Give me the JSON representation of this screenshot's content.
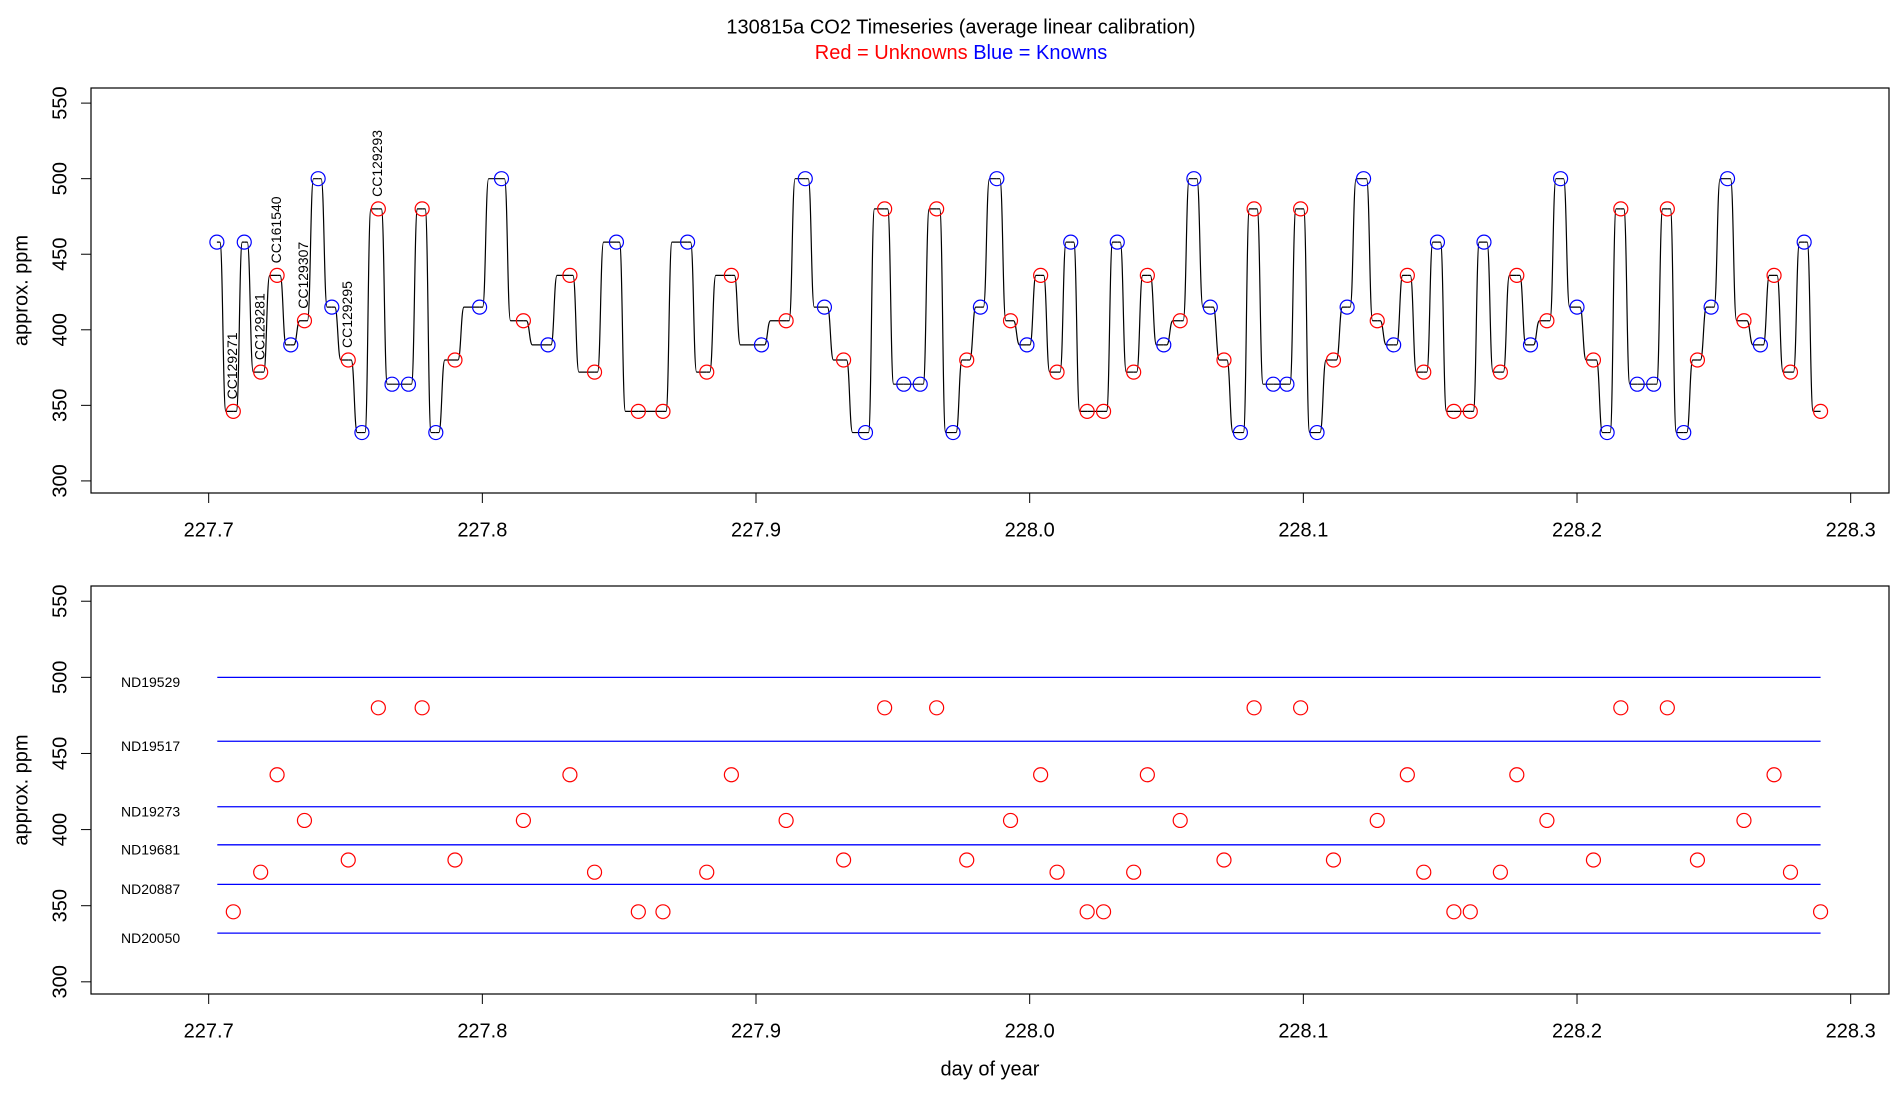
{
  "chart_data": [
    {
      "type": "line",
      "title": "130815a   CO2 Timeseries (average linear calibration)",
      "legend_text": [
        {
          "text": "Red = Unknowns",
          "color": "#ff0000"
        },
        {
          "text": "Blue = Knowns",
          "color": "#0000ff"
        }
      ],
      "y_label": "approx. ppm",
      "xlim": [
        227.657,
        228.314
      ],
      "ylim": [
        292,
        560
      ],
      "xticks": [
        227.7,
        227.8,
        227.9,
        {
          "value": 228,
          "label": "228.0"
        },
        228.1,
        228.2,
        228.3
      ],
      "yticks": [
        300,
        350,
        400,
        450,
        500,
        550
      ],
      "line_color": "#000000",
      "series": [
        {
          "name": "Knowns",
          "color": "#0000ff",
          "x": [
            227.703,
            227.713,
            227.73,
            227.74,
            227.745,
            227.756,
            227.767,
            227.773,
            227.783,
            227.799,
            227.807,
            227.824,
            227.849,
            227.875,
            227.902,
            227.918,
            227.925,
            227.94,
            227.954,
            227.96,
            227.972,
            227.982,
            227.988,
            227.999,
            228.015,
            228.032,
            228.049,
            228.06,
            228.066,
            228.077,
            228.089,
            228.094,
            228.105,
            228.116,
            228.122,
            228.133,
            228.149,
            228.166,
            228.183,
            228.194,
            228.2,
            228.211,
            228.222,
            228.228,
            228.239,
            228.249,
            228.255,
            228.267,
            228.283
          ],
          "values": [
            458,
            458,
            390,
            500,
            415,
            332,
            364,
            364,
            332,
            415,
            500,
            390,
            458,
            458,
            390,
            500,
            415,
            332,
            364,
            364,
            332,
            415,
            500,
            390,
            458,
            458,
            390,
            500,
            415,
            332,
            364,
            364,
            332,
            415,
            500,
            390,
            458,
            458,
            390,
            500,
            415,
            332,
            364,
            364,
            332,
            415,
            500,
            390,
            458
          ]
        },
        {
          "name": "Unknowns",
          "color": "#ff0000",
          "x": [
            227.709,
            227.719,
            227.725,
            227.735,
            227.751,
            227.762,
            227.778,
            227.79,
            227.815,
            227.832,
            227.841,
            227.857,
            227.866,
            227.882,
            227.891,
            227.911,
            227.932,
            227.947,
            227.966,
            227.977,
            227.993,
            228.004,
            228.01,
            228.021,
            228.027,
            228.038,
            228.043,
            228.055,
            228.071,
            228.082,
            228.099,
            228.111,
            228.127,
            228.138,
            228.144,
            228.155,
            228.161,
            228.172,
            228.178,
            228.189,
            228.206,
            228.216,
            228.233,
            228.244,
            228.261,
            228.272,
            228.278,
            228.289
          ],
          "values": [
            346,
            372,
            436,
            406,
            380,
            480,
            480,
            380,
            406,
            436,
            372,
            346,
            346,
            372,
            436,
            406,
            380,
            480,
            480,
            380,
            406,
            436,
            372,
            346,
            346,
            372,
            436,
            406,
            380,
            480,
            480,
            380,
            406,
            436,
            372,
            346,
            346,
            372,
            436,
            406,
            380,
            480,
            480,
            380,
            406,
            436,
            372,
            346
          ],
          "point_labels": [
            "CC129271",
            "CC129281",
            "CC161540",
            "CC129307",
            "CC129295",
            "CC129293",
            null,
            null,
            null,
            null,
            null,
            null,
            null,
            null,
            null,
            null,
            null,
            null,
            null,
            null,
            null,
            null,
            null,
            null,
            null,
            null,
            null,
            null,
            null,
            null,
            null,
            null,
            null,
            null,
            null,
            null,
            null,
            null,
            null,
            null,
            null,
            null,
            null,
            null,
            null,
            null,
            null,
            null
          ]
        }
      ]
    },
    {
      "type": "scatter",
      "y_label": "approx. ppm",
      "x_label": "day of year",
      "xlim": [
        227.657,
        228.314
      ],
      "ylim": [
        292,
        560
      ],
      "xticks": [
        227.7,
        227.8,
        227.9,
        {
          "value": 228,
          "label": "228.0"
        },
        228.1,
        228.2,
        228.3
      ],
      "yticks": [
        300,
        350,
        400,
        450,
        500,
        550
      ],
      "reference_lines": {
        "color": "#0000ff",
        "names": [
          "ND19529",
          "ND19517",
          "ND19273",
          "ND19681",
          "ND20887",
          "ND20050"
        ],
        "values": [
          500,
          458,
          415,
          390,
          364,
          332
        ]
      },
      "series": [
        {
          "color": "#ff0000",
          "x": [
            227.709,
            227.719,
            227.725,
            227.735,
            227.751,
            227.762,
            227.778,
            227.79,
            227.815,
            227.832,
            227.841,
            227.857,
            227.866,
            227.882,
            227.891,
            227.911,
            227.932,
            227.947,
            227.966,
            227.977,
            227.993,
            228.004,
            228.01,
            228.021,
            228.027,
            228.038,
            228.043,
            228.055,
            228.071,
            228.082,
            228.099,
            228.111,
            228.127,
            228.138,
            228.144,
            228.155,
            228.161,
            228.172,
            228.178,
            228.189,
            228.206,
            228.216,
            228.233,
            228.244,
            228.261,
            228.272,
            228.278,
            228.289
          ],
          "values": [
            346,
            372,
            436,
            406,
            380,
            480,
            480,
            380,
            406,
            436,
            372,
            346,
            346,
            372,
            436,
            406,
            380,
            480,
            480,
            380,
            406,
            436,
            372,
            346,
            346,
            372,
            436,
            406,
            380,
            480,
            480,
            380,
            406,
            436,
            372,
            346,
            346,
            372,
            436,
            406,
            380,
            480,
            480,
            380,
            406,
            436,
            372,
            346
          ]
        }
      ]
    }
  ]
}
